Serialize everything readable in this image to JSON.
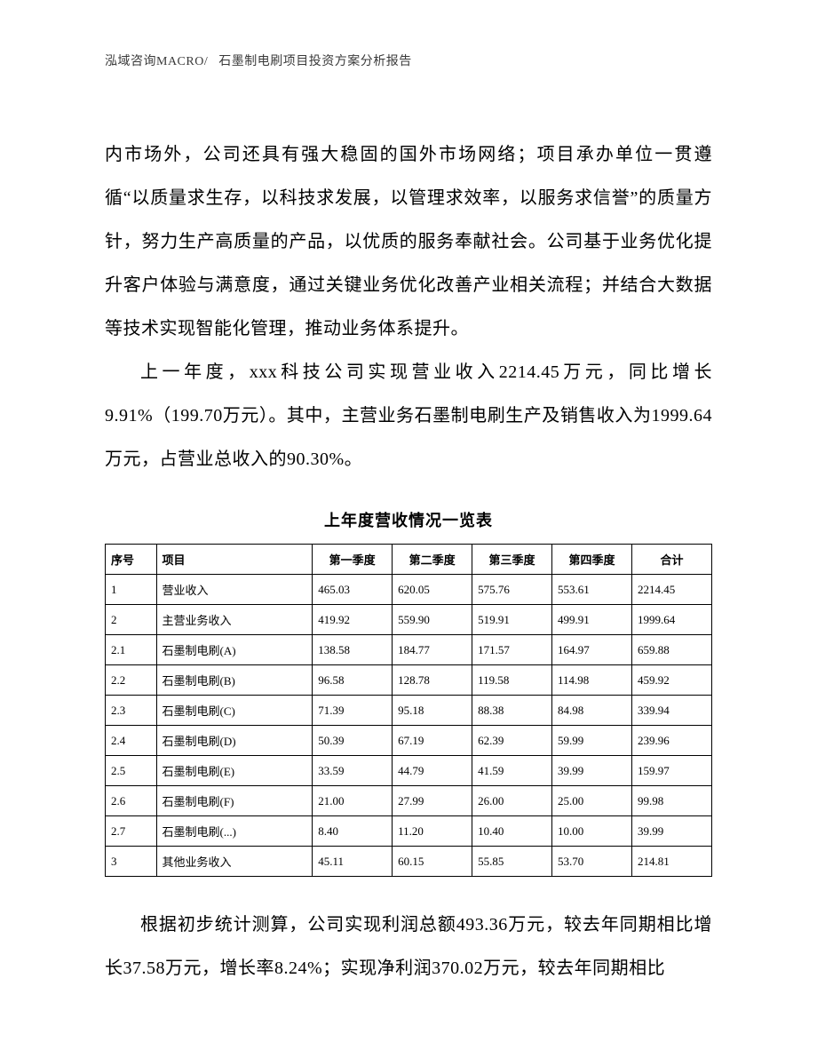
{
  "header": {
    "left": "泓域咨询MACRO/",
    "right": "石墨制电刷项目投资方案分析报告"
  },
  "paragraphs": {
    "p1": "内市场外，公司还具有强大稳固的国外市场网络；项目承办单位一贯遵循“以质量求生存，以科技求发展，以管理求效率，以服务求信誉”的质量方针，努力生产高质量的产品，以优质的服务奉献社会。公司基于业务优化提升客户体验与满意度，通过关键业务优化改善产业相关流程；并结合大数据等技术实现智能化管理，推动业务体系提升。",
    "p2": "上一年度，xxx科技公司实现营业收入2214.45万元，同比增长9.91%（199.70万元）。其中，主营业务石墨制电刷生产及销售收入为1999.64万元，占营业总收入的90.30%。",
    "p3": "根据初步统计测算，公司实现利润总额493.36万元，较去年同期相比增长37.58万元，增长率8.24%；实现净利润370.02万元，较去年同期相比"
  },
  "table": {
    "title": "上年度营收情况一览表",
    "columns": [
      "序号",
      "项目",
      "第一季度",
      "第二季度",
      "第三季度",
      "第四季度",
      "合计"
    ],
    "rows": [
      [
        "1",
        "营业收入",
        "465.03",
        "620.05",
        "575.76",
        "553.61",
        "2214.45"
      ],
      [
        "2",
        "主营业务收入",
        "419.92",
        "559.90",
        "519.91",
        "499.91",
        "1999.64"
      ],
      [
        "2.1",
        "石墨制电刷(A)",
        "138.58",
        "184.77",
        "171.57",
        "164.97",
        "659.88"
      ],
      [
        "2.2",
        "石墨制电刷(B)",
        "96.58",
        "128.78",
        "119.58",
        "114.98",
        "459.92"
      ],
      [
        "2.3",
        "石墨制电刷(C)",
        "71.39",
        "95.18",
        "88.38",
        "84.98",
        "339.94"
      ],
      [
        "2.4",
        "石墨制电刷(D)",
        "50.39",
        "67.19",
        "62.39",
        "59.99",
        "239.96"
      ],
      [
        "2.5",
        "石墨制电刷(E)",
        "33.59",
        "44.79",
        "41.59",
        "39.99",
        "159.97"
      ],
      [
        "2.6",
        "石墨制电刷(F)",
        "21.00",
        "27.99",
        "26.00",
        "25.00",
        "99.98"
      ],
      [
        "2.7",
        "石墨制电刷(...)",
        "8.40",
        "11.20",
        "10.40",
        "10.00",
        "39.99"
      ],
      [
        "3",
        "其他业务收入",
        "45.11",
        "60.15",
        "55.85",
        "53.70",
        "214.81"
      ]
    ]
  },
  "styles": {
    "background_color": "#ffffff",
    "text_color": "#000000",
    "header_color": "#3a3a3a",
    "body_fontsize": 20,
    "header_fontsize": 14,
    "table_title_fontsize": 18,
    "table_fontsize": 13,
    "border_color": "#000000",
    "line_height": 2.45
  }
}
